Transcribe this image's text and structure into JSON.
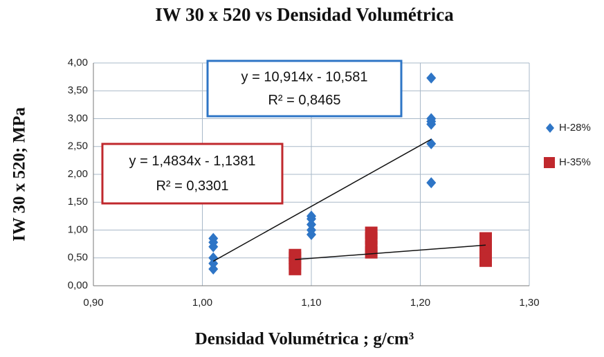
{
  "chart_data": {
    "type": "scatter",
    "title": "IW 30 x 520 vs Densidad Volumétrica",
    "x_label": "Densidad Volumétrica ; g/cm³",
    "y_label": "IW 30 x 520; MPa",
    "xlim": [
      0.9,
      1.3
    ],
    "xticks": [
      {
        "value": 0.9,
        "label": "0,90"
      },
      {
        "value": 1.0,
        "label": "1,00"
      },
      {
        "value": 1.1,
        "label": "1,10"
      },
      {
        "value": 1.2,
        "label": "1,20"
      },
      {
        "value": 1.3,
        "label": "1,30"
      }
    ],
    "ylim": [
      0,
      4
    ],
    "yticks": [
      {
        "value": 0,
        "label": "0,00"
      },
      {
        "value": 0.5,
        "label": "0,50"
      },
      {
        "value": 1.0,
        "label": "1,00"
      },
      {
        "value": 1.5,
        "label": "1,50"
      },
      {
        "value": 2.0,
        "label": "2,00"
      },
      {
        "value": 2.5,
        "label": "2,50"
      },
      {
        "value": 3.0,
        "label": "3,00"
      },
      {
        "value": 3.5,
        "label": "3,50"
      },
      {
        "value": 4.0,
        "label": "4,00"
      }
    ],
    "grid": true,
    "legend": "right",
    "series": [
      {
        "name": "H-28%",
        "color": "#2e75c6",
        "marker": "diamond",
        "x": [
          1.01,
          1.01,
          1.01,
          1.01,
          1.01,
          1.01,
          1.1,
          1.1,
          1.1,
          1.1,
          1.1,
          1.21,
          1.21,
          1.21,
          1.21,
          1.21,
          1.21
        ],
        "values": [
          0.3,
          0.4,
          0.5,
          0.7,
          0.78,
          0.85,
          0.92,
          1.0,
          1.1,
          1.2,
          1.25,
          1.85,
          2.55,
          2.9,
          2.95,
          3.0,
          3.73
        ],
        "trendline": {
          "x": [
            1.01,
            1.21
          ],
          "values": [
            0.44,
            2.63
          ]
        },
        "equation": [
          "y = 10,914x - 10,581",
          "R² = 0,8465"
        ]
      },
      {
        "name": "H-35%",
        "color": "#c0282d",
        "marker": "square",
        "x": [
          1.085,
          1.085,
          1.085,
          1.085,
          1.155,
          1.155,
          1.155,
          1.155,
          1.26,
          1.26,
          1.26,
          1.26
        ],
        "values": [
          0.3,
          0.4,
          0.5,
          0.55,
          0.6,
          0.7,
          0.85,
          0.95,
          0.45,
          0.55,
          0.7,
          0.85
        ],
        "trendline": {
          "x": [
            1.085,
            1.26
          ],
          "values": [
            0.47,
            0.73
          ]
        },
        "equation": [
          "y = 1,4834x - 1,1381",
          "R² = 0,3301"
        ]
      }
    ]
  }
}
